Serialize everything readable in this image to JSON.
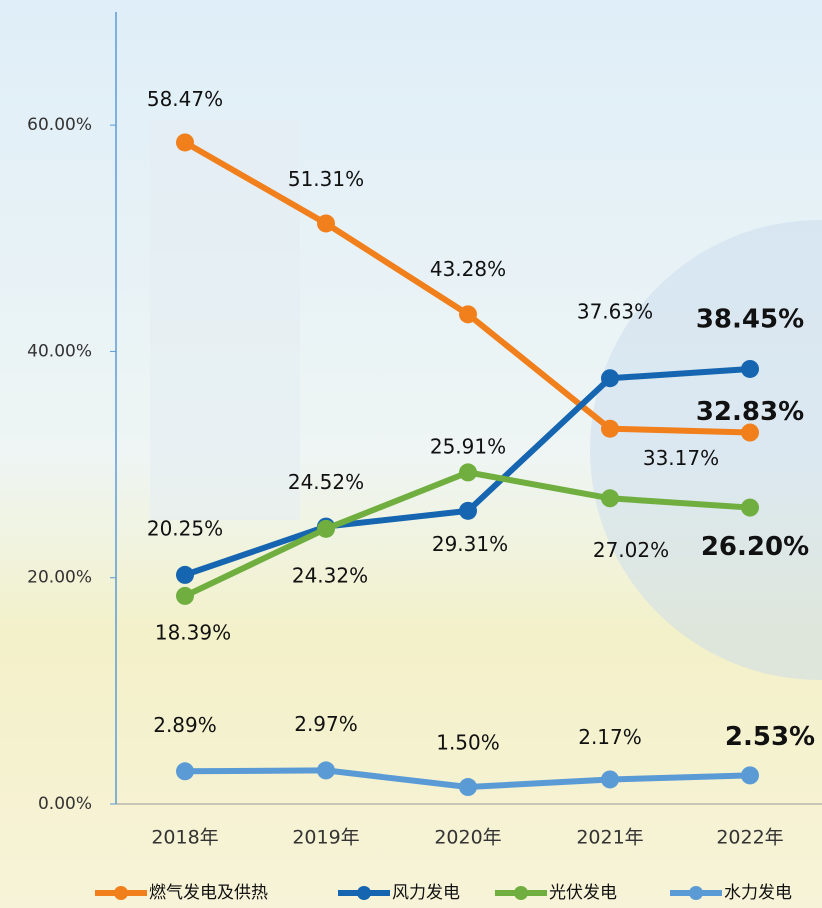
{
  "chart_data": {
    "type": "line",
    "categories": [
      "2018年",
      "2019年",
      "2020年",
      "2021年",
      "2022年"
    ],
    "ylim": [
      0,
      70
    ],
    "yticks": [
      {
        "value": 0,
        "label": "0.00%"
      },
      {
        "value": 20,
        "label": "20.00%"
      },
      {
        "value": 40,
        "label": "40.00%"
      },
      {
        "value": 60,
        "label": "60.00%"
      }
    ],
    "series": [
      {
        "name": "燃气发电及供热",
        "color": "#f07f1c",
        "values": [
          58.47,
          51.31,
          43.28,
          33.17,
          32.83
        ],
        "value_labels": [
          "58.47%",
          "51.31%",
          "43.28%",
          "33.17%",
          "32.83%"
        ]
      },
      {
        "name": "风力发电",
        "color": "#1565b0",
        "values": [
          20.25,
          24.52,
          25.91,
          37.63,
          38.45
        ],
        "value_labels": [
          "20.25%",
          "24.52%",
          "25.91%",
          "37.63%",
          "38.45%"
        ]
      },
      {
        "name": "光伏发电",
        "color": "#6fae3f",
        "values": [
          18.39,
          24.32,
          29.31,
          27.02,
          26.2
        ],
        "value_labels": [
          "18.39%",
          "24.32%",
          "29.31%",
          "27.02%",
          "26.20%"
        ]
      },
      {
        "name": "水力发电",
        "color": "#5b9bd5",
        "values": [
          2.89,
          2.97,
          1.5,
          2.17,
          2.53
        ],
        "value_labels": [
          "2.89%",
          "2.97%",
          "1.50%",
          "2.17%",
          "2.53%"
        ]
      }
    ]
  }
}
